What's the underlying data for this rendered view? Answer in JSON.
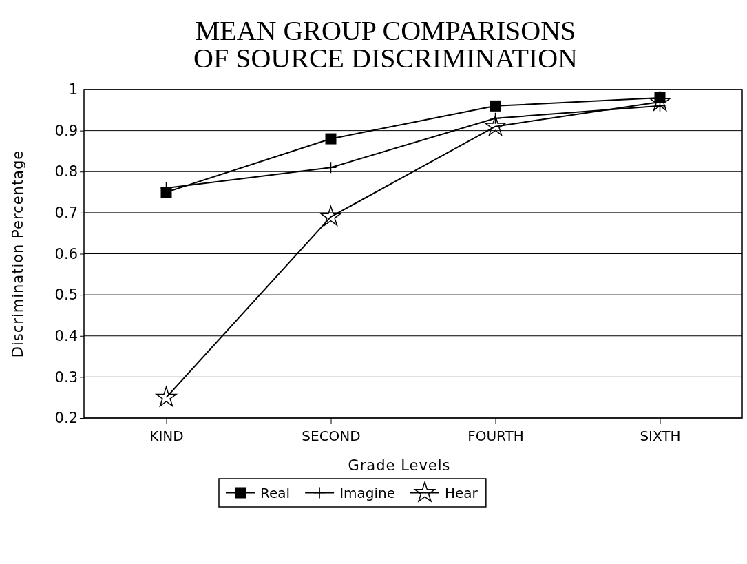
{
  "chart_data": {
    "type": "line",
    "title": "MEAN GROUP COMPARISONS\nOF SOURCE DISCRIMINATION",
    "xlabel": "Grade Levels",
    "ylabel": "Discrimination Percentage",
    "categories": [
      "KIND",
      "SECOND",
      "FOURTH",
      "SIXTH"
    ],
    "series": [
      {
        "name": "Real",
        "color": "#000000",
        "marker": "square",
        "values": [
          0.75,
          0.88,
          0.96,
          0.98
        ]
      },
      {
        "name": "Imagine",
        "color": "#000000",
        "marker": "cross",
        "values": [
          0.76,
          0.81,
          0.93,
          0.96
        ]
      },
      {
        "name": "Hear",
        "color": "#000000",
        "marker": "star",
        "values": [
          0.25,
          0.69,
          0.91,
          0.97
        ]
      }
    ],
    "ylim": [
      0.2,
      1
    ],
    "yticks": [
      0.2,
      0.3,
      0.4,
      0.5,
      0.6,
      0.7,
      0.8,
      0.9,
      1
    ],
    "grid": "y",
    "legend": "bottom",
    "line_style": "solid"
  }
}
